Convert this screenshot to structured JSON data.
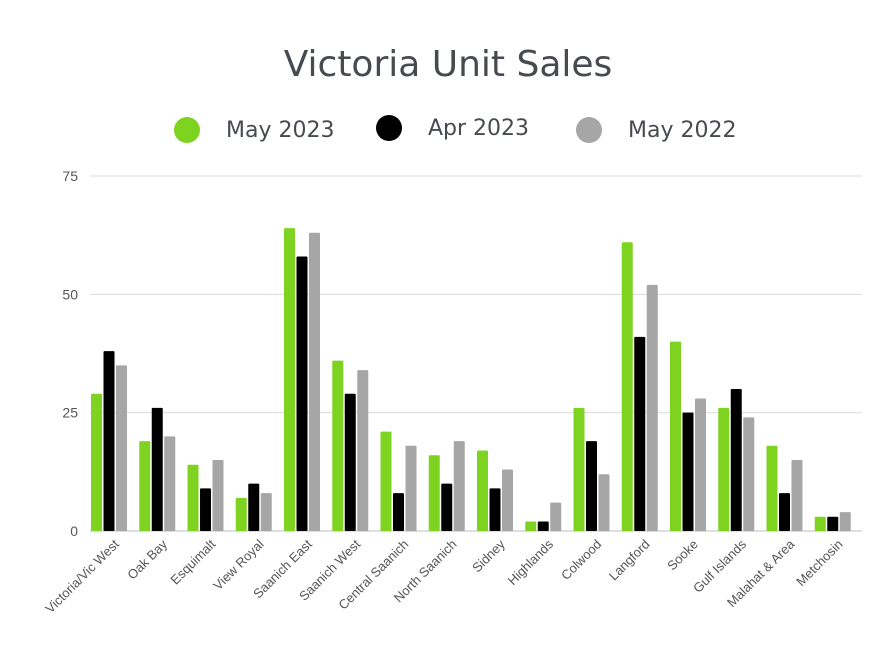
{
  "chart_data": {
    "type": "bar",
    "title": "Victoria Unit Sales",
    "categories": [
      "Victoria/Vic West",
      "Oak Bay",
      "Esquimalt",
      "View Royal",
      "Saanich East",
      "Saanich West",
      "Central Saanich",
      "North Saanich",
      "Sidney",
      "Highlands",
      "Colwood",
      "Langford",
      "Sooke",
      "Gulf Islands",
      "Malahat & Area",
      "Metchosin"
    ],
    "series": [
      {
        "name": "May 2023",
        "color": "#7ed321",
        "values": [
          29,
          19,
          14,
          7,
          64,
          36,
          21,
          16,
          17,
          2,
          26,
          61,
          40,
          26,
          18,
          3
        ]
      },
      {
        "name": "Apr 2023",
        "color": "#000000",
        "values": [
          38,
          26,
          9,
          10,
          58,
          29,
          8,
          10,
          9,
          2,
          19,
          41,
          25,
          30,
          8,
          3
        ]
      },
      {
        "name": "May 2022",
        "color": "#a6a6a6",
        "values": [
          35,
          20,
          15,
          8,
          63,
          34,
          18,
          19,
          13,
          6,
          12,
          52,
          28,
          24,
          15,
          4
        ]
      }
    ],
    "yticks": [
      0,
      25,
      50,
      75
    ],
    "ylim": [
      0,
      75
    ],
    "grid": true,
    "legend_position": "top"
  }
}
